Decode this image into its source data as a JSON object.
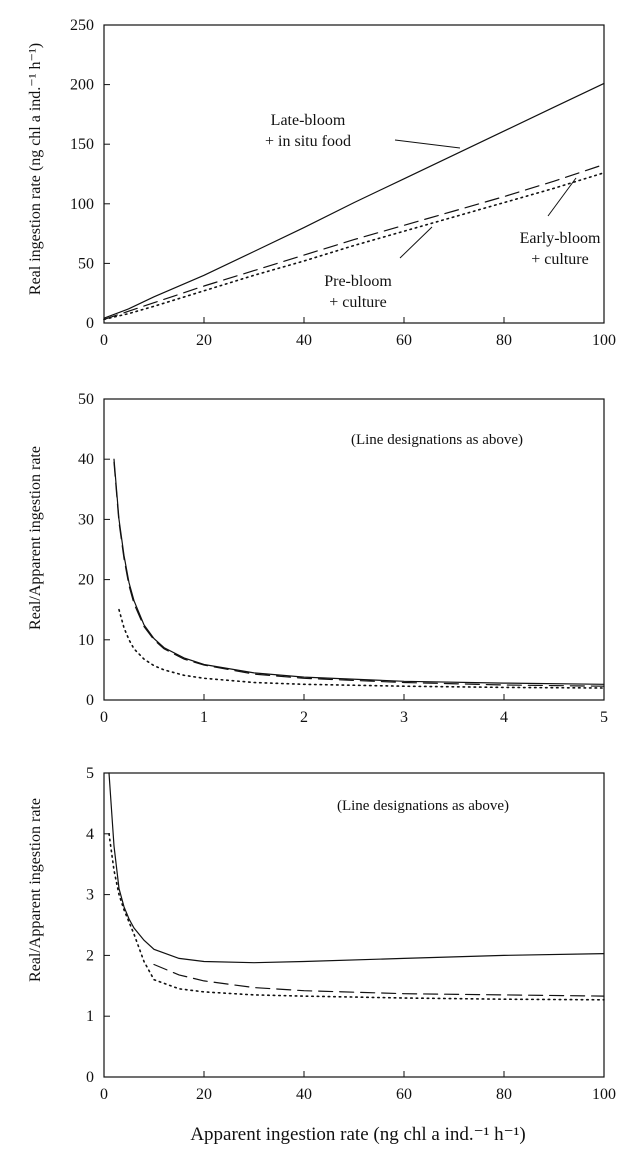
{
  "figure": {
    "xlabel": "Apparent ingestion rate (ng chl a ind.⁻¹ h⁻¹)"
  },
  "chart_data": [
    {
      "type": "line",
      "title": "",
      "xlabel": "",
      "ylabel": "Real ingestion rate (ng chl a ind.⁻¹ h⁻¹)",
      "xlim": [
        0,
        100
      ],
      "ylim": [
        0,
        250
      ],
      "xticks": [
        0,
        20,
        40,
        60,
        80,
        100
      ],
      "yticks": [
        0,
        50,
        100,
        150,
        200,
        250
      ],
      "grid": false,
      "annotations": [
        {
          "lines": [
            "Late-bloom",
            "+ in situ food"
          ],
          "series": 0
        },
        {
          "lines": [
            "Early-bloom",
            "+ culture"
          ],
          "series": 1
        },
        {
          "lines": [
            "Pre-bloom",
            "+ culture"
          ],
          "series": 2
        }
      ],
      "series": [
        {
          "name": "Late-bloom + in situ food",
          "style": "solid",
          "x": [
            0,
            5,
            10,
            20,
            30,
            40,
            50,
            60,
            70,
            80,
            90,
            100
          ],
          "y": [
            4,
            12,
            22,
            40,
            60,
            80,
            101,
            121,
            141,
            161,
            181,
            201
          ]
        },
        {
          "name": "Early-bloom + culture",
          "style": "dashed",
          "x": [
            0,
            5,
            10,
            20,
            30,
            40,
            50,
            60,
            70,
            80,
            90,
            100
          ],
          "y": [
            3,
            10,
            17,
            31,
            44,
            57,
            70,
            82,
            94,
            106,
            119,
            133
          ]
        },
        {
          "name": "Pre-bloom + culture",
          "style": "dotted",
          "x": [
            0,
            5,
            10,
            20,
            30,
            40,
            50,
            60,
            70,
            80,
            90,
            100
          ],
          "y": [
            3,
            8,
            14,
            27,
            40,
            52,
            65,
            77,
            89,
            101,
            113,
            126
          ]
        }
      ]
    },
    {
      "type": "line",
      "title": "",
      "xlabel": "",
      "ylabel": "Real/Apparent ingestion rate",
      "annotation": "(Line designations as above)",
      "xlim": [
        0,
        5
      ],
      "ylim": [
        0,
        50
      ],
      "xticks": [
        0,
        1,
        2,
        3,
        4,
        5
      ],
      "yticks": [
        0,
        10,
        20,
        30,
        40,
        50
      ],
      "grid": false,
      "series": [
        {
          "name": "Late-bloom + in situ food",
          "style": "solid",
          "x": [
            0.1,
            0.15,
            0.2,
            0.25,
            0.3,
            0.4,
            0.5,
            0.6,
            0.8,
            1.0,
            1.5,
            2.0,
            3.0,
            4.0,
            5.0
          ],
          "y": [
            40,
            30,
            24,
            19.5,
            16.5,
            12.5,
            10.2,
            8.7,
            7.0,
            5.9,
            4.5,
            3.8,
            3.1,
            2.8,
            2.6
          ]
        },
        {
          "name": "Early-bloom + culture",
          "style": "dashed",
          "x": [
            0.1,
            0.15,
            0.2,
            0.25,
            0.3,
            0.4,
            0.5,
            0.6,
            0.8,
            1.0,
            1.5,
            2.0,
            3.0,
            4.0,
            5.0
          ],
          "y": [
            39.5,
            29.5,
            23.5,
            19,
            16,
            12.2,
            10,
            8.5,
            6.8,
            5.8,
            4.3,
            3.6,
            2.9,
            2.5,
            2.3
          ]
        },
        {
          "name": "Pre-bloom + culture",
          "style": "dotted",
          "x": [
            0.15,
            0.2,
            0.25,
            0.3,
            0.4,
            0.5,
            0.6,
            0.8,
            1.0,
            1.5,
            2.0,
            3.0,
            4.0,
            5.0
          ],
          "y": [
            15,
            12,
            10,
            8.5,
            6.8,
            5.7,
            5.0,
            4.1,
            3.6,
            2.9,
            2.6,
            2.3,
            2.1,
            2.0
          ]
        }
      ]
    },
    {
      "type": "line",
      "title": "",
      "xlabel": "Apparent ingestion rate (ng chl a ind.⁻¹ h⁻¹)",
      "ylabel": "Real/Apparent ingestion rate",
      "annotation": "(Line designations as above)",
      "xlim": [
        0,
        100
      ],
      "ylim": [
        0,
        5
      ],
      "xticks": [
        0,
        20,
        40,
        60,
        80,
        100
      ],
      "yticks": [
        0,
        1,
        2,
        3,
        4,
        5
      ],
      "grid": false,
      "series": [
        {
          "name": "Late-bloom + in situ food",
          "style": "solid",
          "x": [
            1,
            1.5,
            2,
            3,
            4,
            5,
            6,
            8,
            10,
            15,
            20,
            30,
            40,
            60,
            80,
            100
          ],
          "y": [
            5.0,
            4.4,
            3.8,
            3.1,
            2.8,
            2.6,
            2.45,
            2.25,
            2.1,
            1.95,
            1.9,
            1.88,
            1.9,
            1.95,
            2.0,
            2.03
          ]
        },
        {
          "name": "Early-bloom + culture",
          "style": "dashed",
          "x": [
            10,
            15,
            20,
            30,
            40,
            60,
            80,
            100
          ],
          "y": [
            1.85,
            1.68,
            1.58,
            1.47,
            1.42,
            1.37,
            1.35,
            1.33
          ]
        },
        {
          "name": "Pre-bloom + culture",
          "style": "dotted",
          "x": [
            1,
            2,
            3,
            4,
            5,
            6,
            8,
            10,
            15,
            20,
            30,
            40,
            60,
            80,
            100
          ],
          "y": [
            4.0,
            3.4,
            3.0,
            2.75,
            2.55,
            2.35,
            1.9,
            1.6,
            1.45,
            1.4,
            1.35,
            1.33,
            1.3,
            1.28,
            1.27
          ]
        }
      ]
    }
  ]
}
